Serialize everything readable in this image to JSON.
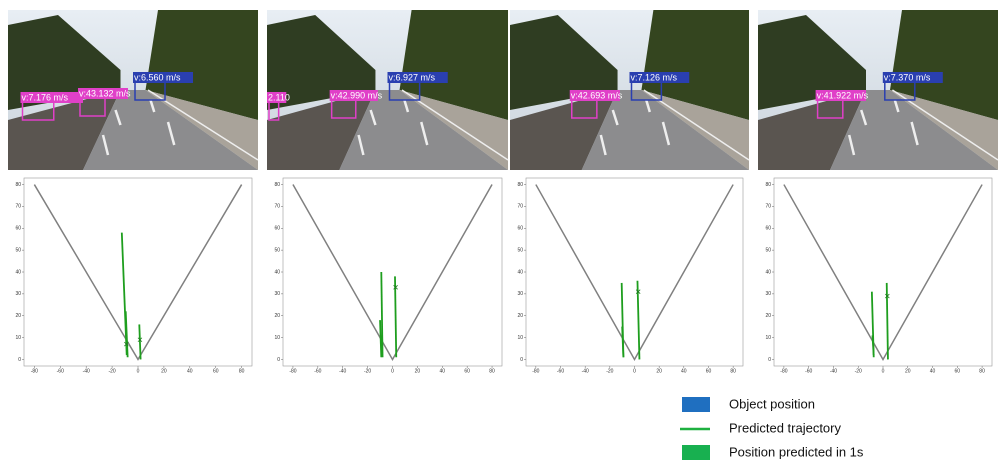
{
  "camera_views": [
    {
      "labels": [
        {
          "text": "v:7.176 m/s",
          "color": "#e040c8"
        },
        {
          "text": "v:43.132 m/s",
          "color": "#e040c8"
        },
        {
          "text": "v:6.560 m/s",
          "color": "#2a3fb0"
        }
      ]
    },
    {
      "labels": [
        {
          "text": "2.110",
          "color": "#e040c8"
        },
        {
          "text": "v:42.990 m/s",
          "color": "#e040c8"
        },
        {
          "text": "v:6.927 m/s",
          "color": "#2a3fb0"
        }
      ]
    },
    {
      "labels": [
        {
          "text": "v:42.693 m/s",
          "color": "#e040c8"
        },
        {
          "text": "v:7.126 m/s",
          "color": "#2a3fb0"
        }
      ]
    },
    {
      "labels": [
        {
          "text": "v:41.922 m/s",
          "color": "#e040c8"
        },
        {
          "text": "v:7.370 m/s",
          "color": "#2a3fb0"
        }
      ]
    }
  ],
  "chart_data": [
    {
      "type": "line",
      "xlim": [
        -88,
        88
      ],
      "ylim": [
        -3,
        83
      ],
      "xticks": [
        -80,
        -60,
        -40,
        -20,
        0,
        20,
        40,
        60,
        80
      ],
      "yticks": [
        0,
        10,
        20,
        30,
        40,
        50,
        60,
        70,
        80
      ],
      "fov": {
        "color": "#808080",
        "x": [
          -80,
          0,
          80
        ],
        "y": [
          80,
          0,
          80
        ]
      },
      "lines": [
        {
          "color": "#1e9e1e",
          "x": [
            -12.5,
            -8.7
          ],
          "y": [
            58,
            2
          ]
        },
        {
          "color": "#1e9e1e",
          "x": [
            -9.5,
            -8
          ],
          "y": [
            22,
            1
          ]
        },
        {
          "color": "#1e9e1e",
          "x": [
            1,
            2
          ],
          "y": [
            16,
            0
          ]
        }
      ],
      "markers": {
        "color": "#1e7a1e",
        "x": [
          -9,
          1.5
        ],
        "y": [
          7,
          9
        ]
      }
    },
    {
      "type": "line",
      "xlim": [
        -88,
        88
      ],
      "ylim": [
        -3,
        83
      ],
      "xticks": [
        -80,
        -60,
        -40,
        -20,
        0,
        20,
        40,
        60,
        80
      ],
      "yticks": [
        0,
        10,
        20,
        30,
        40,
        50,
        60,
        70,
        80
      ],
      "fov": {
        "color": "#808080",
        "x": [
          -80,
          0,
          80
        ],
        "y": [
          80,
          0,
          80
        ]
      },
      "lines": [
        {
          "color": "#1e9e1e",
          "x": [
            -9,
            -8
          ],
          "y": [
            40,
            1
          ]
        },
        {
          "color": "#1e9e1e",
          "x": [
            -10,
            -9
          ],
          "y": [
            18,
            1
          ]
        },
        {
          "color": "#1e9e1e",
          "x": [
            2,
            3
          ],
          "y": [
            38,
            1
          ]
        }
      ],
      "markers": {
        "color": "#1e7a1e",
        "x": [
          2.5
        ],
        "y": [
          33
        ]
      }
    },
    {
      "type": "line",
      "xlim": [
        -88,
        88
      ],
      "ylim": [
        -3,
        83
      ],
      "xticks": [
        -80,
        -60,
        -40,
        -20,
        0,
        20,
        40,
        60,
        80
      ],
      "yticks": [
        0,
        10,
        20,
        30,
        40,
        50,
        60,
        70,
        80
      ],
      "fov": {
        "color": "#808080",
        "x": [
          -80,
          0,
          80
        ],
        "y": [
          80,
          0,
          80
        ]
      },
      "lines": [
        {
          "color": "#1e9e1e",
          "x": [
            -10.4,
            -9
          ],
          "y": [
            35,
            1
          ]
        },
        {
          "color": "#1e9e1e",
          "x": [
            -10,
            -9
          ],
          "y": [
            15,
            1
          ]
        },
        {
          "color": "#1e9e1e",
          "x": [
            2.4,
            4
          ],
          "y": [
            36,
            0
          ]
        }
      ],
      "markers": {
        "color": "#1e7a1e",
        "x": [
          3
        ],
        "y": [
          31
        ]
      }
    },
    {
      "type": "line",
      "xlim": [
        -88,
        88
      ],
      "ylim": [
        -3,
        83
      ],
      "xticks": [
        -80,
        -60,
        -40,
        -20,
        0,
        20,
        40,
        60,
        80
      ],
      "yticks": [
        0,
        10,
        20,
        30,
        40,
        50,
        60,
        70,
        80
      ],
      "fov": {
        "color": "#808080",
        "x": [
          -80,
          0,
          80
        ],
        "y": [
          80,
          0,
          80
        ]
      },
      "lines": [
        {
          "color": "#1e9e1e",
          "x": [
            -9,
            -7.5
          ],
          "y": [
            31,
            1
          ]
        },
        {
          "color": "#1e9e1e",
          "x": [
            -8.5,
            -7.5
          ],
          "y": [
            11,
            2
          ]
        },
        {
          "color": "#1e9e1e",
          "x": [
            3,
            4
          ],
          "y": [
            35,
            0
          ]
        }
      ],
      "markers": {
        "color": "#1e7a1e",
        "x": [
          3.5
        ],
        "y": [
          29
        ]
      }
    }
  ],
  "legend": [
    {
      "text": "Object position",
      "color": "#1f6fc0",
      "kind": "box"
    },
    {
      "text": "Predicted trajectory",
      "color": "#1eb040",
      "kind": "line"
    },
    {
      "text": "Position predicted in 1s",
      "color": "#18b050",
      "kind": "box"
    }
  ]
}
